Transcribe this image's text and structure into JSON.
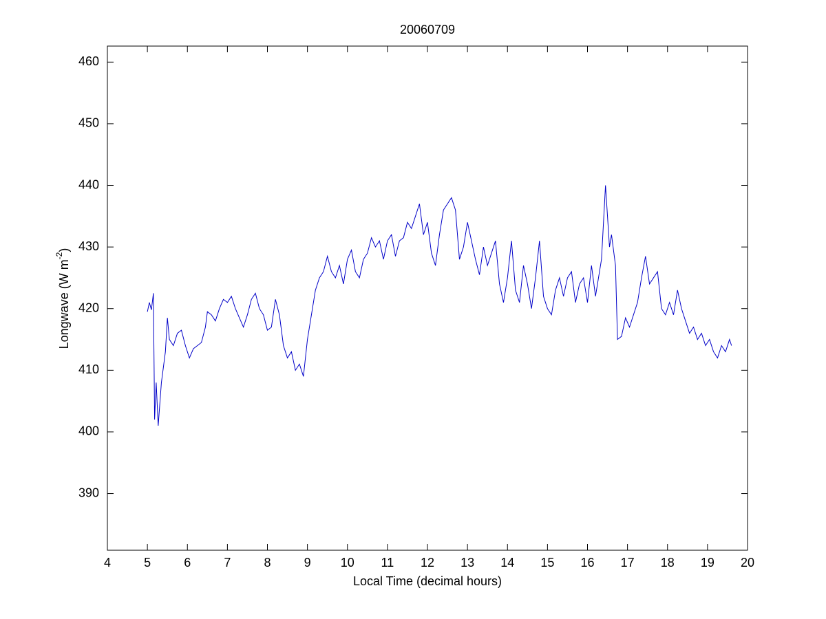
{
  "chart_data": {
    "type": "line",
    "title": "20060709",
    "xlabel": "Local Time (decimal hours)",
    "ylabel": [
      "Longwave (W m",
      "-2",
      ")"
    ],
    "xlim": [
      4,
      20
    ],
    "xticks": [
      4,
      5,
      6,
      7,
      8,
      9,
      10,
      11,
      12,
      13,
      14,
      15,
      16,
      17,
      18,
      19,
      20
    ],
    "ylim": [
      380.8,
      462.6
    ],
    "yticks": [
      390,
      400,
      410,
      420,
      430,
      440,
      450,
      460
    ],
    "grid": false,
    "series": [
      {
        "name": "Longwave",
        "color": "#0000c8",
        "x": [
          5.0,
          5.05,
          5.1,
          5.15,
          5.18,
          5.22,
          5.27,
          5.35,
          5.45,
          5.5,
          5.55,
          5.65,
          5.75,
          5.85,
          5.95,
          6.05,
          6.15,
          6.25,
          6.35,
          6.45,
          6.5,
          6.6,
          6.7,
          6.8,
          6.9,
          7.0,
          7.1,
          7.2,
          7.3,
          7.4,
          7.5,
          7.6,
          7.7,
          7.8,
          7.9,
          8.0,
          8.1,
          8.2,
          8.3,
          8.4,
          8.5,
          8.6,
          8.7,
          8.8,
          8.9,
          9.0,
          9.1,
          9.2,
          9.3,
          9.4,
          9.5,
          9.6,
          9.7,
          9.8,
          9.9,
          10.0,
          10.1,
          10.2,
          10.3,
          10.4,
          10.5,
          10.6,
          10.7,
          10.8,
          10.9,
          11.0,
          11.1,
          11.2,
          11.3,
          11.4,
          11.5,
          11.6,
          11.7,
          11.8,
          11.9,
          12.0,
          12.1,
          12.2,
          12.3,
          12.4,
          12.5,
          12.6,
          12.7,
          12.8,
          12.9,
          13.0,
          13.1,
          13.2,
          13.3,
          13.4,
          13.5,
          13.6,
          13.7,
          13.8,
          13.9,
          14.0,
          14.1,
          14.2,
          14.3,
          14.4,
          14.5,
          14.6,
          14.7,
          14.8,
          14.9,
          15.0,
          15.1,
          15.2,
          15.3,
          15.4,
          15.5,
          15.6,
          15.7,
          15.8,
          15.9,
          16.0,
          16.1,
          16.2,
          16.3,
          16.35,
          16.45,
          16.55,
          16.6,
          16.7,
          16.75,
          16.85,
          16.95,
          17.05,
          17.15,
          17.25,
          17.35,
          17.45,
          17.55,
          17.65,
          17.75,
          17.85,
          17.95,
          18.05,
          18.15,
          18.25,
          18.35,
          18.45,
          18.55,
          18.65,
          18.75,
          18.85,
          18.95,
          19.05,
          19.15,
          19.25,
          19.35,
          19.45,
          19.55,
          19.6
        ],
        "values": [
          419.5,
          421,
          419.8,
          422.5,
          402,
          408,
          401,
          408,
          413,
          418.5,
          415,
          414,
          416,
          416.5,
          414,
          412,
          413.5,
          414,
          414.5,
          417,
          419.5,
          419,
          418,
          420,
          421.5,
          421,
          422,
          420,
          418.5,
          417,
          419,
          421.5,
          422.5,
          420,
          419,
          416.5,
          417,
          421.5,
          419,
          414,
          412,
          413,
          410,
          411,
          409,
          415,
          419,
          423,
          425,
          426,
          428.5,
          426,
          425,
          427,
          424,
          428,
          429.5,
          426,
          425,
          428,
          429,
          431.5,
          430,
          431,
          428,
          431,
          432,
          428.5,
          431,
          431.5,
          434,
          433,
          435,
          437,
          432,
          434,
          429,
          427,
          432,
          436,
          437,
          438,
          436,
          428,
          430,
          434,
          431,
          428,
          425.5,
          430,
          427,
          429,
          431,
          424,
          421,
          425,
          431,
          423,
          421,
          427,
          424,
          420,
          425,
          431,
          422,
          420,
          419,
          423,
          425,
          422,
          425,
          426,
          421,
          424,
          425,
          421,
          427,
          422,
          426,
          428,
          440,
          430,
          432,
          427,
          415,
          415.5,
          418.5,
          417,
          419,
          421,
          425,
          428.5,
          424,
          425,
          426,
          420,
          419,
          421,
          419,
          423,
          420,
          418,
          416,
          417,
          415,
          416,
          414,
          415,
          413,
          412,
          414,
          413,
          415,
          414
        ]
      }
    ]
  }
}
